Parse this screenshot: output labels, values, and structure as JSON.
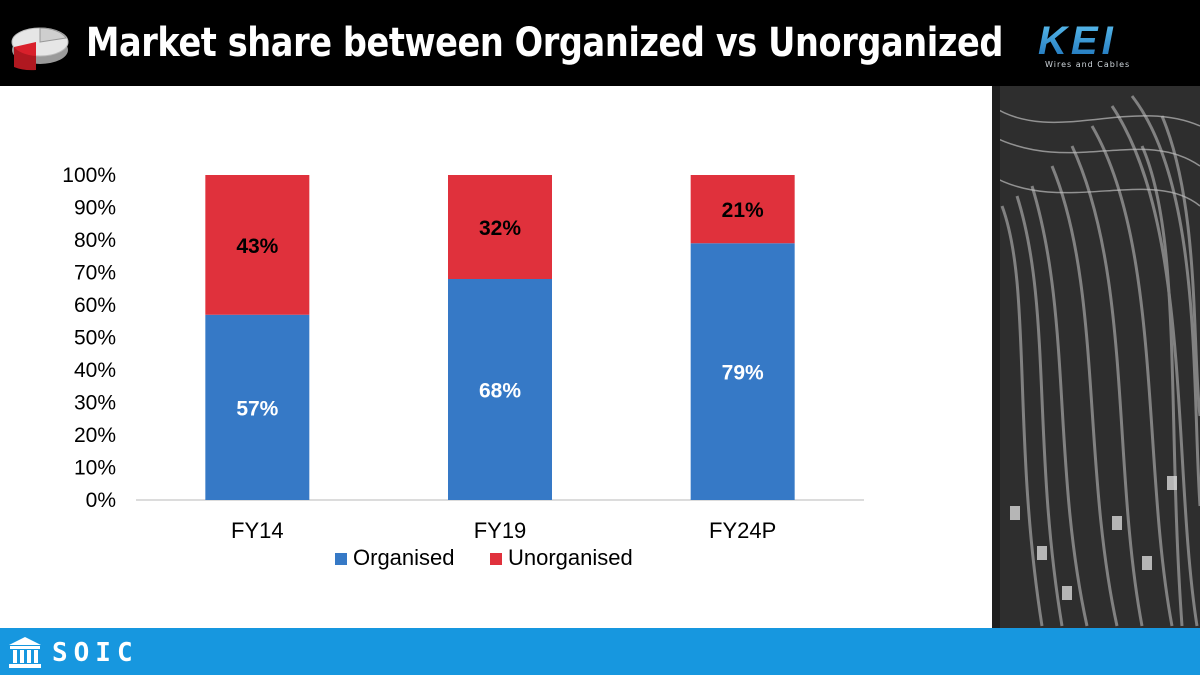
{
  "header": {
    "title": "Market share between Organized vs Unorganized",
    "logo_text": "KEI",
    "logo_tagline": "Wires and Cables"
  },
  "footer": {
    "brand": "SOIC"
  },
  "colors": {
    "organised": "#3679c6",
    "unorganised": "#e0313c",
    "header_bg": "#000000",
    "footer_bg": "#1797df"
  },
  "icons": {
    "header": "pie-chart-icon",
    "footer": "institution-building-icon"
  },
  "chart_data": {
    "type": "bar",
    "stacked": true,
    "categories": [
      "FY14",
      "FY19",
      "FY24P"
    ],
    "series": [
      {
        "name": "Organised",
        "values": [
          57,
          68,
          79
        ],
        "labels": [
          "57%",
          "68%",
          "79%"
        ],
        "color": "#3679c6"
      },
      {
        "name": "Unorganised",
        "values": [
          43,
          32,
          21
        ],
        "labels": [
          "43%",
          "32%",
          "21%"
        ],
        "color": "#e0313c"
      }
    ],
    "ylim": [
      0,
      100
    ],
    "yticks": [
      "0%",
      "10%",
      "20%",
      "30%",
      "40%",
      "50%",
      "60%",
      "70%",
      "80%",
      "90%",
      "100%"
    ],
    "grid": false,
    "legend": "bottom"
  }
}
